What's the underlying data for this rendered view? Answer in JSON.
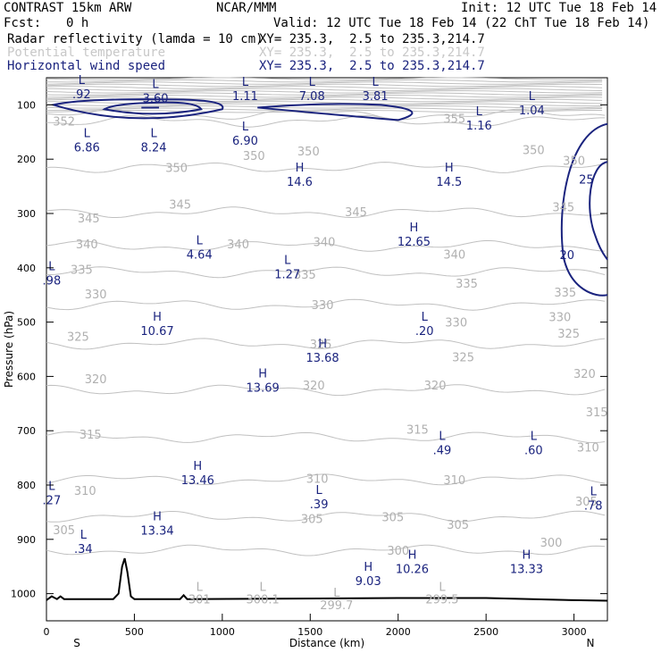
{
  "header": {
    "model": "CONTRAST 15km ARW",
    "center": "NCAR/MMM",
    "init": "Init: 12 UTC Tue 18 Feb 14",
    "fcst_label": "Fcst:",
    "fcst_value": "0 h",
    "valid": "Valid: 12 UTC Tue 18 Feb 14 (22 ChT Tue 18 Feb 14)"
  },
  "fields": [
    {
      "name": "Radar reflectivity (lamda = 10 cm)",
      "xy": "XY= 235.3,  2.5 to 235.3,214.7",
      "color": "#000000"
    },
    {
      "name": "Potential temperature",
      "xy": "XY= 235.3,  2.5 to 235.3,214.7",
      "color": "#c8c8c8"
    },
    {
      "name": "Horizontal wind speed",
      "xy": "XY= 235.3,  2.5 to 235.3,214.7",
      "color": "#1a237e"
    }
  ],
  "chart_data": {
    "type": "cross-section",
    "xlabel": "Distance (km)",
    "ylabel": "Pressure (hPa)",
    "xlim": [
      0,
      3190
    ],
    "ylim": [
      1050,
      50
    ],
    "x_ticks": [
      0,
      500,
      1000,
      1500,
      2000,
      2500,
      3000
    ],
    "y_ticks": [
      100,
      200,
      300,
      400,
      500,
      600,
      700,
      800,
      900,
      1000
    ],
    "end_labels": {
      "left": "S",
      "right": "N"
    },
    "colors": {
      "theta": "#c0c0c0",
      "wind": "#1a237e",
      "terrain": "#000000"
    },
    "theta_levels": [
      {
        "value": 300,
        "pressure": 920,
        "labels": [
          [
            2000,
            920
          ],
          [
            2870,
            905
          ]
        ]
      },
      {
        "value": 305,
        "pressure": 858,
        "labels": [
          [
            100,
            882
          ],
          [
            1510,
            862
          ],
          [
            1970,
            858
          ],
          [
            2340,
            872
          ],
          [
            3070,
            830
          ]
        ]
      },
      {
        "value": 310,
        "pressure": 790,
        "labels": [
          [
            220,
            810
          ],
          [
            1540,
            788
          ],
          [
            2320,
            790
          ],
          [
            3080,
            730
          ]
        ]
      },
      {
        "value": 315,
        "pressure": 712,
        "labels": [
          [
            250,
            706
          ],
          [
            2110,
            697
          ],
          [
            3130,
            665
          ]
        ]
      },
      {
        "value": 320,
        "pressure": 625,
        "labels": [
          [
            280,
            604
          ],
          [
            1520,
            616
          ],
          [
            2210,
            616
          ],
          [
            3060,
            594
          ]
        ]
      },
      {
        "value": 325,
        "pressure": 540,
        "labels": [
          [
            180,
            526
          ],
          [
            1560,
            540
          ],
          [
            2370,
            564
          ],
          [
            2970,
            520
          ]
        ]
      },
      {
        "value": 330,
        "pressure": 468,
        "labels": [
          [
            280,
            448
          ],
          [
            1570,
            468
          ],
          [
            2330,
            500
          ],
          [
            2920,
            490
          ]
        ]
      },
      {
        "value": 335,
        "pressure": 408,
        "labels": [
          [
            200,
            403
          ],
          [
            1470,
            412
          ],
          [
            2390,
            428
          ],
          [
            2950,
            445
          ]
        ]
      },
      {
        "value": 340,
        "pressure": 360,
        "labels": [
          [
            230,
            356
          ],
          [
            1090,
            356
          ],
          [
            1580,
            352
          ],
          [
            2320,
            375
          ]
        ]
      },
      {
        "value": 345,
        "pressure": 298,
        "labels": [
          [
            240,
            308
          ],
          [
            760,
            283
          ],
          [
            1760,
            297
          ],
          [
            2940,
            288
          ]
        ]
      },
      {
        "value": 350,
        "pressure": 215,
        "labels": [
          [
            740,
            215
          ],
          [
            1180,
            193
          ],
          [
            1490,
            185
          ],
          [
            2770,
            182
          ],
          [
            3000,
            202
          ]
        ]
      },
      {
        "value": 352,
        "pressure": 130,
        "labels": [
          [
            100,
            130
          ]
        ]
      },
      {
        "value": 355,
        "pressure": 118,
        "labels": [
          [
            2320,
            125
          ]
        ]
      }
    ],
    "wind_contours": [
      {
        "value": 20,
        "label_at": [
          2960,
          376
        ]
      },
      {
        "value": 25,
        "label_at": [
          3070,
          237
        ]
      }
    ],
    "wind_extrema": [
      {
        "type": "L",
        "value": ".92",
        "x": 200,
        "y": 65
      },
      {
        "type": "L",
        "value": "3.60",
        "x": 620,
        "y": 72
      },
      {
        "type": "L",
        "value": "1.11",
        "x": 1130,
        "y": 68
      },
      {
        "type": "L",
        "value": "7.08",
        "x": 1510,
        "y": 68
      },
      {
        "type": "L",
        "value": "3.81",
        "x": 1870,
        "y": 68
      },
      {
        "type": "L",
        "value": "1.04",
        "x": 2760,
        "y": 94
      },
      {
        "type": "L",
        "value": "1.16",
        "x": 2460,
        "y": 122
      },
      {
        "type": "L",
        "value": "6.90",
        "x": 1130,
        "y": 150
      },
      {
        "type": "L",
        "value": "6.86",
        "x": 230,
        "y": 163
      },
      {
        "type": "L",
        "value": "8.24",
        "x": 610,
        "y": 163
      },
      {
        "type": "H",
        "value": "14.6",
        "x": 1440,
        "y": 226
      },
      {
        "type": "H",
        "value": "14.5",
        "x": 2290,
        "y": 226
      },
      {
        "type": "H",
        "value": "12.65",
        "x": 2090,
        "y": 336
      },
      {
        "type": "L",
        "value": "4.64",
        "x": 870,
        "y": 360
      },
      {
        "type": "L",
        "value": "1.27",
        "x": 1370,
        "y": 396
      },
      {
        "type": "L",
        "value": ".98",
        "x": 30,
        "y": 408
      },
      {
        "type": "H",
        "value": "10.67",
        "x": 630,
        "y": 501
      },
      {
        "type": "L",
        "value": ".20",
        "x": 2150,
        "y": 501
      },
      {
        "type": "H",
        "value": "13.68",
        "x": 1570,
        "y": 550
      },
      {
        "type": "H",
        "value": "13.69",
        "x": 1230,
        "y": 605
      },
      {
        "type": "L",
        "value": ".49",
        "x": 2250,
        "y": 720
      },
      {
        "type": "L",
        "value": ".60",
        "x": 2770,
        "y": 720
      },
      {
        "type": "H",
        "value": "13.46",
        "x": 860,
        "y": 775
      },
      {
        "type": "L",
        "value": ".27",
        "x": 30,
        "y": 812
      },
      {
        "type": "L",
        "value": ".39",
        "x": 1550,
        "y": 820
      },
      {
        "type": "L",
        "value": ".78",
        "x": 3110,
        "y": 822
      },
      {
        "type": "H",
        "value": "13.34",
        "x": 630,
        "y": 868
      },
      {
        "type": "L",
        "value": ".34",
        "x": 210,
        "y": 902
      },
      {
        "type": "H",
        "value": "9.03",
        "x": 1830,
        "y": 961
      },
      {
        "type": "H",
        "value": "10.26",
        "x": 2080,
        "y": 939
      },
      {
        "type": "H",
        "value": "13.33",
        "x": 2730,
        "y": 939
      }
    ],
    "theta_extrema": [
      {
        "type": "L",
        "value": "301",
        "x": 870,
        "y": 1015
      },
      {
        "type": "L",
        "value": "300.1",
        "x": 1230,
        "y": 1015
      },
      {
        "type": "L",
        "value": "299.7",
        "x": 1650,
        "y": 1025
      },
      {
        "type": "L",
        "value": "299.5",
        "x": 2250,
        "y": 1015
      }
    ],
    "terrain_profile": [
      [
        0,
        1012
      ],
      [
        30,
        1005
      ],
      [
        60,
        1010
      ],
      [
        80,
        1005
      ],
      [
        100,
        1010
      ],
      [
        380,
        1010
      ],
      [
        410,
        1000
      ],
      [
        430,
        950
      ],
      [
        445,
        935
      ],
      [
        460,
        960
      ],
      [
        480,
        1005
      ],
      [
        500,
        1010
      ],
      [
        760,
        1010
      ],
      [
        780,
        1003
      ],
      [
        800,
        1010
      ],
      [
        2000,
        1008
      ],
      [
        2500,
        1008
      ],
      [
        3000,
        1012
      ],
      [
        3190,
        1013
      ]
    ]
  }
}
